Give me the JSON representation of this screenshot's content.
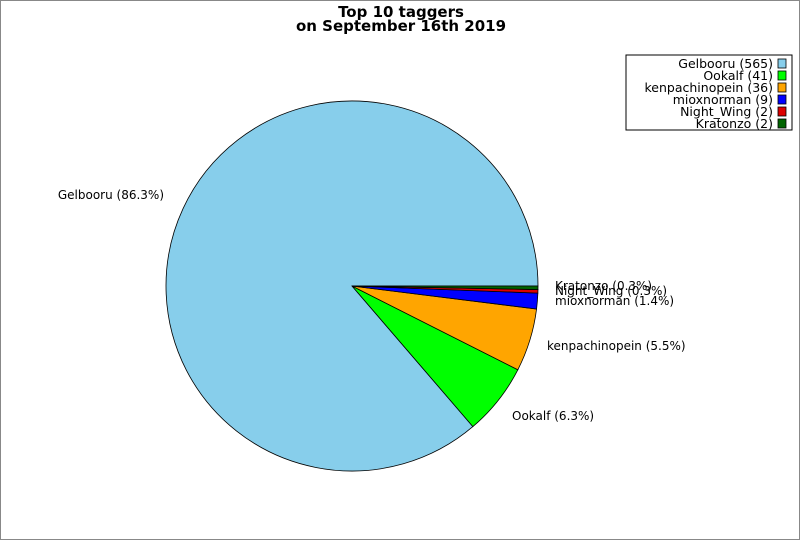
{
  "chart_data": {
    "type": "pie",
    "title": "Top 10 taggers",
    "subtitle": "on September 16th 2019",
    "legend_position": "top-right",
    "slices": [
      {
        "name": "Gelbooru",
        "value": 565,
        "legend_label": "Gelbooru (565)",
        "slice_label": "Gelbooru (86.3%)",
        "color": "#87CEEB"
      },
      {
        "name": "Ookalf",
        "value": 41,
        "legend_label": "Ookalf (41)",
        "slice_label": "Ookalf (6.3%)",
        "color": "#00FF00"
      },
      {
        "name": "kenpachinopein",
        "value": 36,
        "legend_label": "kenpachinopein (36)",
        "slice_label": "kenpachinopein (5.5%)",
        "color": "#FFA500"
      },
      {
        "name": "mioxnorman",
        "value": 9,
        "legend_label": "mioxnorman (9)",
        "slice_label": "mioxnorman (1.4%)",
        "color": "#0000FF"
      },
      {
        "name": "Night_Wing",
        "value": 2,
        "legend_label": "Night_Wing (2)",
        "slice_label": "Night_Wing (0.3%)",
        "color": "#DD0000"
      },
      {
        "name": "Kratonzo",
        "value": 2,
        "legend_label": "Kratonzo (2)",
        "slice_label": "Kratonzo (0.3%)",
        "color": "#006400"
      }
    ]
  }
}
